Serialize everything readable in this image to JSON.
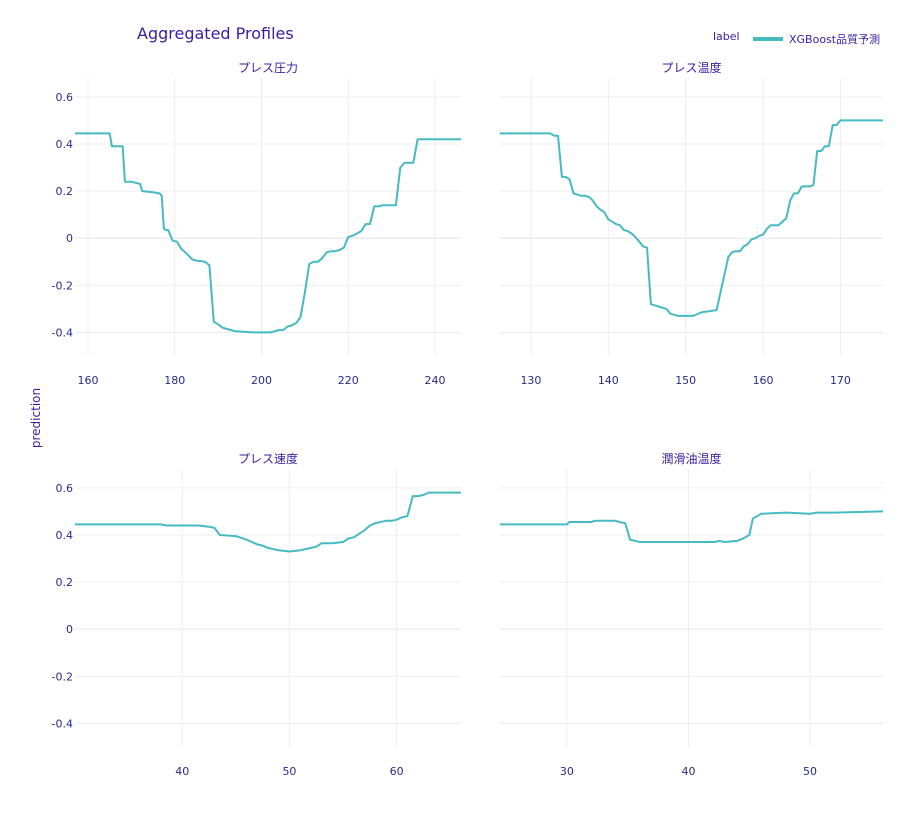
{
  "title": "Aggregated Profiles",
  "y_axis_title": "prediction",
  "legend": {
    "title": "label",
    "entries": [
      "XGBoost品質予測"
    ]
  },
  "colors": {
    "line": "#46bac2",
    "grid": "#ebedf2",
    "text": "#371ea3",
    "axis_text": "#2a2a8a"
  },
  "chart_data": [
    {
      "type": "line",
      "title": "プレス圧力",
      "xlim": [
        157,
        246
      ],
      "ylim": [
        -0.5,
        0.68
      ],
      "xticks": [
        160,
        180,
        200,
        220,
        240
      ],
      "yticks": [
        0.6,
        0.4,
        0.2,
        0,
        -0.2,
        -0.4
      ],
      "grid": true,
      "series": [
        {
          "name": "XGBoost品質予測",
          "x": [
            157,
            165,
            165.5,
            168,
            168.5,
            170,
            171,
            172,
            172.5,
            175,
            176.5,
            177,
            177.5,
            178,
            178.5,
            179.5,
            180.5,
            181.5,
            183,
            184,
            185,
            187,
            188,
            189,
            190,
            191,
            192,
            193,
            194,
            196,
            198,
            200,
            202,
            203,
            204,
            205,
            206,
            207,
            208,
            209,
            210,
            211,
            212,
            213,
            214,
            215,
            216,
            217,
            218,
            219,
            220,
            221,
            222,
            223,
            224,
            225,
            226,
            227,
            228,
            229,
            230,
            231,
            232,
            233,
            234,
            235,
            236,
            246
          ],
          "y": [
            0.445,
            0.445,
            0.39,
            0.39,
            0.24,
            0.24,
            0.235,
            0.23,
            0.2,
            0.195,
            0.19,
            0.18,
            0.04,
            0.035,
            0.035,
            -0.01,
            -0.015,
            -0.045,
            -0.07,
            -0.09,
            -0.095,
            -0.1,
            -0.115,
            -0.355,
            -0.365,
            -0.38,
            -0.385,
            -0.39,
            -0.395,
            -0.397,
            -0.4,
            -0.4,
            -0.4,
            -0.395,
            -0.39,
            -0.39,
            -0.375,
            -0.37,
            -0.36,
            -0.335,
            -0.23,
            -0.11,
            -0.1,
            -0.1,
            -0.085,
            -0.06,
            -0.055,
            -0.055,
            -0.05,
            -0.04,
            0.005,
            0.01,
            0.02,
            0.03,
            0.06,
            0.06,
            0.135,
            0.135,
            0.14,
            0.14,
            0.14,
            0.14,
            0.3,
            0.32,
            0.32,
            0.32,
            0.42,
            0.42
          ]
        }
      ]
    },
    {
      "type": "line",
      "title": "プレス温度",
      "xlim": [
        126,
        175.5
      ],
      "ylim": [
        -0.5,
        0.68
      ],
      "xticks": [
        130,
        140,
        150,
        160,
        170
      ],
      "yticks": [
        0.6,
        0.4,
        0.2,
        0,
        -0.2,
        -0.4
      ],
      "grid": true,
      "series": [
        {
          "name": "XGBoost品質予測",
          "x": [
            126,
            132.5,
            133,
            133.5,
            134,
            134.5,
            135,
            135.5,
            136,
            136.5,
            137,
            137.5,
            138,
            138.5,
            139,
            139.5,
            140,
            140.5,
            141,
            141.5,
            142,
            142.5,
            143,
            143.5,
            144,
            144.5,
            145,
            145.5,
            146,
            146.5,
            147,
            147.5,
            148,
            148.5,
            149,
            150,
            151,
            152,
            153,
            154,
            155,
            155.5,
            156,
            156.5,
            157,
            157.5,
            158,
            158.5,
            159,
            159.5,
            160,
            160.5,
            161,
            161.5,
            162,
            162.5,
            163,
            163.5,
            164,
            164.5,
            165,
            165.5,
            166,
            166.5,
            167,
            167.5,
            168,
            168.5,
            169,
            169.5,
            170,
            175.5
          ],
          "y": [
            0.445,
            0.445,
            0.435,
            0.435,
            0.26,
            0.26,
            0.25,
            0.19,
            0.185,
            0.18,
            0.18,
            0.175,
            0.16,
            0.135,
            0.12,
            0.11,
            0.08,
            0.07,
            0.06,
            0.055,
            0.035,
            0.03,
            0.02,
            0.005,
            -0.015,
            -0.035,
            -0.04,
            -0.28,
            -0.285,
            -0.29,
            -0.295,
            -0.3,
            -0.32,
            -0.325,
            -0.33,
            -0.33,
            -0.33,
            -0.315,
            -0.31,
            -0.305,
            -0.155,
            -0.08,
            -0.06,
            -0.055,
            -0.055,
            -0.035,
            -0.025,
            -0.005,
            0.0,
            0.01,
            0.015,
            0.04,
            0.055,
            0.055,
            0.055,
            0.07,
            0.085,
            0.16,
            0.19,
            0.19,
            0.22,
            0.22,
            0.22,
            0.225,
            0.37,
            0.37,
            0.39,
            0.39,
            0.48,
            0.48,
            0.5,
            0.5
          ]
        }
      ]
    },
    {
      "type": "line",
      "title": "プレス速度",
      "xlim": [
        30,
        66
      ],
      "ylim": [
        -0.5,
        0.68
      ],
      "xticks": [
        40,
        50,
        60
      ],
      "yticks": [
        0.6,
        0.4,
        0.2,
        0,
        -0.2,
        -0.4
      ],
      "grid": true,
      "series": [
        {
          "name": "XGBoost品質予測",
          "x": [
            30,
            38,
            38.5,
            41,
            41.5,
            42.5,
            43,
            43.5,
            45,
            46,
            46.5,
            47,
            47.5,
            48,
            49,
            50,
            51,
            52,
            52.5,
            53,
            54,
            55,
            55.5,
            56,
            56.5,
            57,
            57.5,
            58,
            59,
            59.5,
            60,
            60.5,
            61,
            61.5,
            62,
            62.5,
            63,
            66
          ],
          "y": [
            0.445,
            0.445,
            0.44,
            0.44,
            0.44,
            0.435,
            0.43,
            0.4,
            0.395,
            0.38,
            0.37,
            0.36,
            0.355,
            0.345,
            0.335,
            0.33,
            0.335,
            0.345,
            0.35,
            0.365,
            0.365,
            0.37,
            0.385,
            0.39,
            0.405,
            0.42,
            0.44,
            0.45,
            0.46,
            0.46,
            0.465,
            0.475,
            0.48,
            0.565,
            0.565,
            0.57,
            0.58,
            0.58
          ]
        }
      ]
    },
    {
      "type": "line",
      "title": "潤滑油温度",
      "xlim": [
        24.5,
        56
      ],
      "ylim": [
        -0.5,
        0.68
      ],
      "xticks": [
        30,
        40,
        50
      ],
      "yticks": [
        0.6,
        0.4,
        0.2,
        0,
        -0.2,
        -0.4
      ],
      "grid": true,
      "series": [
        {
          "name": "XGBoost品質予測",
          "x": [
            24.5,
            30,
            30.2,
            32,
            32.3,
            34,
            34.3,
            34.8,
            35.2,
            35.6,
            36,
            38,
            40,
            42.2,
            42.5,
            43,
            44,
            44.5,
            45,
            45.3,
            46,
            48,
            50,
            50.5,
            52,
            56
          ],
          "y": [
            0.445,
            0.445,
            0.455,
            0.455,
            0.46,
            0.46,
            0.455,
            0.45,
            0.38,
            0.375,
            0.37,
            0.37,
            0.37,
            0.37,
            0.375,
            0.37,
            0.375,
            0.385,
            0.4,
            0.47,
            0.49,
            0.495,
            0.49,
            0.495,
            0.495,
            0.5
          ]
        }
      ]
    }
  ]
}
